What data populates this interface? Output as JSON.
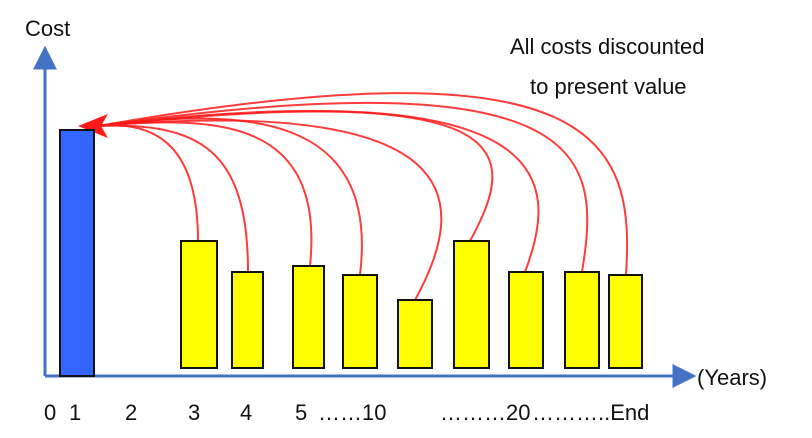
{
  "y_axis_title": "Cost",
  "x_axis_unit": "(Years)",
  "annotation": {
    "line1": "All costs discounted",
    "line2": "to present value"
  },
  "x_ticks": [
    "0",
    "1",
    "2",
    "3",
    "4",
    "5",
    "……10",
    "………20",
    "………..End"
  ],
  "colors": {
    "initial_cost_bar": "#3366ff",
    "future_cost_bar": "#ffff00",
    "discount_arrow": "#ff1a1a",
    "axis": "#4472c4"
  }
}
